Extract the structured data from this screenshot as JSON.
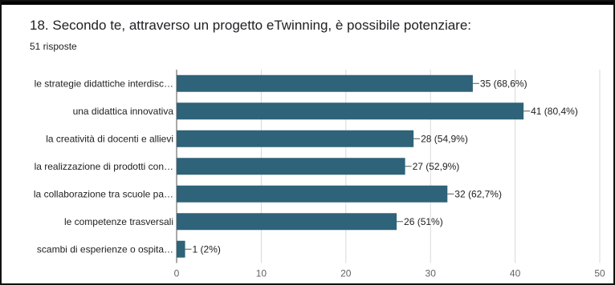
{
  "question": {
    "title": "18. Secondo te, attraverso un progetto eTwinning, è possibile potenziare:",
    "responses": "51 risposte"
  },
  "chart_data": {
    "type": "bar",
    "orientation": "horizontal",
    "categories": [
      "le strategie didattiche interdisc…",
      "una didattica innovativa",
      "la creatività di docenti e allievi",
      "la realizzazione di prodotti con…",
      "la collaborazione tra scuole pa…",
      "le competenze trasversali",
      "scambi di esperienze o ospita…"
    ],
    "values": [
      35,
      41,
      28,
      27,
      32,
      26,
      1
    ],
    "data_labels": [
      "35 (68,6%)",
      "41 (80,4%)",
      "28 (54,9%)",
      "27 (52,9%)",
      "32 (62,7%)",
      "26 (51%)",
      "1 (2%)"
    ],
    "xlim": [
      0,
      50
    ],
    "xticks": [
      0,
      10,
      20,
      30,
      40,
      50
    ],
    "grid": true,
    "bar_color": "#2e6379"
  }
}
